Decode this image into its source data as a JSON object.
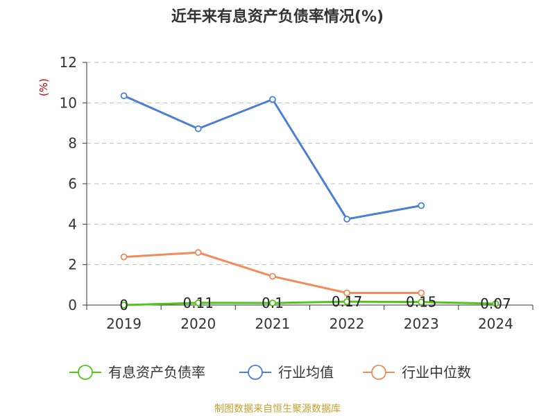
{
  "chart_data": {
    "type": "line",
    "title": "近年来有息资产负债率情况(%)",
    "ylabel": "(%)",
    "categories": [
      "2019",
      "2020",
      "2021",
      "2022",
      "2023",
      "2024"
    ],
    "ylim": [
      0,
      12
    ],
    "yticks": [
      0,
      2,
      4,
      6,
      8,
      10,
      12
    ],
    "grid": true,
    "legend_position": "bottom",
    "series": [
      {
        "name": "有息资产负债率",
        "color": "#52c41a",
        "values": [
          0,
          0.11,
          0.1,
          0.17,
          0.15,
          0.07
        ],
        "labels": [
          "0",
          "0.11",
          "0.1",
          "0.17",
          "0.15",
          "0.07"
        ]
      },
      {
        "name": "行业均值",
        "color": "#4a7fd8",
        "values": [
          10.35,
          8.72,
          10.17,
          4.25,
          4.92,
          null
        ]
      },
      {
        "name": "行业中位数",
        "color": "#f28b59",
        "values": [
          2.38,
          2.6,
          1.42,
          0.6,
          0.6,
          null
        ]
      }
    ]
  },
  "colors": {
    "axis_title": "#cc0000",
    "source": "#c8a032",
    "grid": "#bbbbbb",
    "axis": "#333333"
  },
  "source": "制图数据来自恒生聚源数据库"
}
